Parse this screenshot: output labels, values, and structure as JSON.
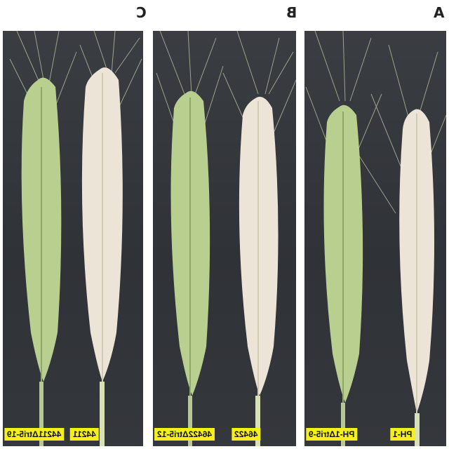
{
  "panels": [
    {
      "letter": "C",
      "labels": [
        "44211",
        "44211Δtri5-19"
      ]
    },
    {
      "letter": "B",
      "labels": [
        "46422",
        "46422Δtri5-12"
      ]
    },
    {
      "letter": "A",
      "labels": [
        "PH-1",
        "PH-1Δtri5-9"
      ]
    }
  ],
  "colors": {
    "background": "#2f3237",
    "healthy_spike": "#b9cf8f",
    "bleached_spike": "#ece4d6",
    "label_bg": "#f5ef1c"
  }
}
